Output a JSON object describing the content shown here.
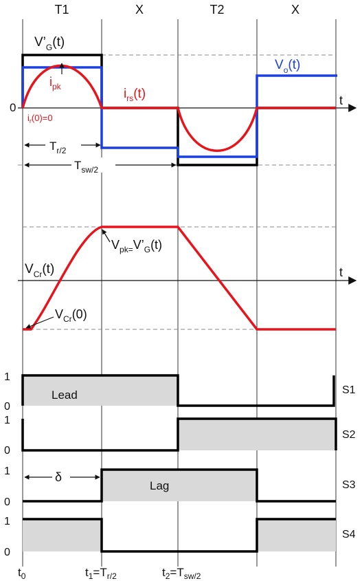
{
  "intervals": [
    "T1",
    "X",
    "T2",
    "X"
  ],
  "axis": {
    "t": "t",
    "zero": "0"
  },
  "top_panel": {
    "vg_main": "V’",
    "vg_sub": "G",
    "vg_tail": "(t)",
    "vo_main": "V",
    "vo_sub": "o",
    "vo_tail": "(t)",
    "ipk_main": "i",
    "ipk_sub": "pk",
    "irs_main": "i",
    "irs_sub": "rs",
    "irs_tail": "(t)",
    "ir0_main": "i",
    "ir0_sub": "r",
    "ir0_tail": "(0)=0",
    "tr2_main": "T",
    "tr2_sub": "r/2",
    "tsw2_main": "T",
    "tsw2_sub": "sw/2"
  },
  "middle_panel": {
    "vpk_main": "V",
    "vpk_sub": "pk=",
    "vpk_mid": "V’",
    "vpk_sub2": "G",
    "vpk_tail": "(t)",
    "vcr_main": "V",
    "vcr_sub": "Cr",
    "vcr_tail": "(t)",
    "vcr0_main": "V",
    "vcr0_sub": "Cr",
    "vcr0_tail": "(0)"
  },
  "switches": [
    {
      "name": "S1",
      "high": "1",
      "low": "0",
      "label": "Lead"
    },
    {
      "name": "S2",
      "high": "1",
      "low": "0",
      "label": ""
    },
    {
      "name": "S3",
      "high": "1",
      "low": "0",
      "label": "Lag"
    },
    {
      "name": "S4",
      "high": "1",
      "low": "0",
      "label": ""
    }
  ],
  "delta": "δ",
  "time_labels": {
    "t0_main": "t",
    "t0_sub": "0",
    "t1_main": "t",
    "t1_sub": "1",
    "t1_tail": "=T",
    "t1_sub2": "r/2",
    "t2_main": "t",
    "t2_sub": "2",
    "t2_tail": "=T",
    "t2_sub2": "sw/2"
  },
  "colors": {
    "gate": "#000000",
    "output": "#1b3fe0",
    "current": "#e8141c",
    "fill": "#d9d9d9"
  }
}
